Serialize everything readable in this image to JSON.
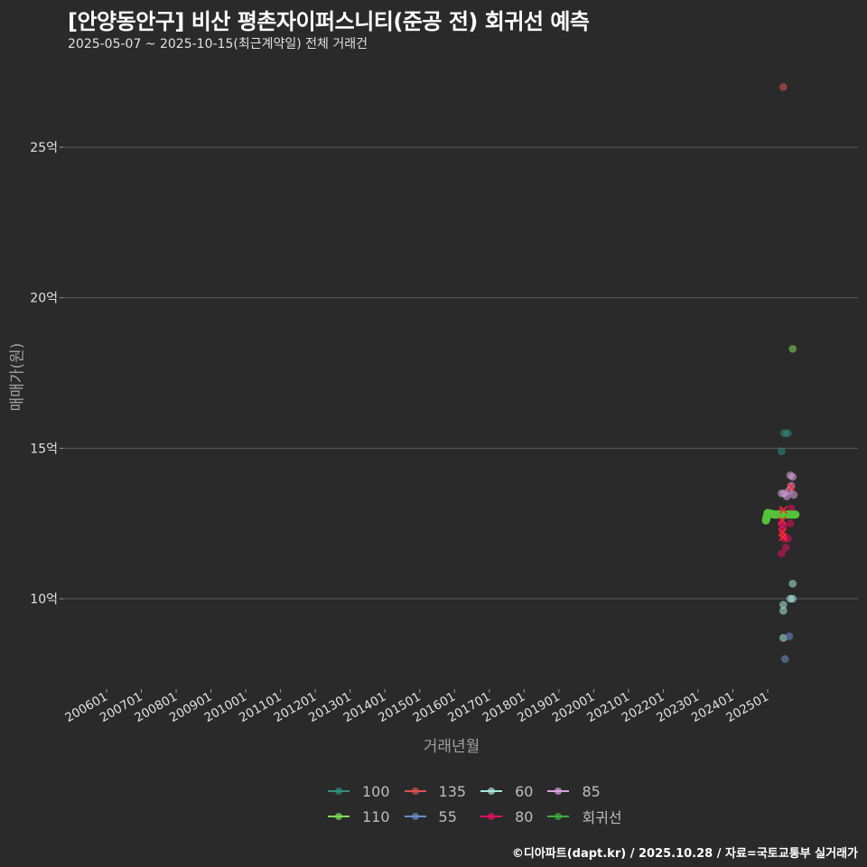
{
  "header": {
    "title": "[안양동안구] 비산 평촌자이퍼스니티(준공 전) 회귀선 예측",
    "subtitle": "2025-05-07 ~ 2025-10-15(최근계약일) 전체 거래건"
  },
  "axes": {
    "ylabel": "매매가(원)",
    "xlabel": "거래년월"
  },
  "legend": {
    "items": [
      {
        "label": "100",
        "color": "#2f8f84"
      },
      {
        "label": "135",
        "color": "#d9534f"
      },
      {
        "label": "60",
        "color": "#a8e6e0"
      },
      {
        "label": "85",
        "color": "#d9a3e0"
      },
      {
        "label": "110",
        "color": "#7ed957"
      },
      {
        "label": "55",
        "color": "#6a8cc7"
      },
      {
        "label": "80",
        "color": "#e0115f"
      },
      {
        "label": "회귀선",
        "color": "#3fae3f"
      }
    ]
  },
  "footer": {
    "credit": "©디아파트(dapt.kr) / 2025.10.28 / 자료=국토교통부 실거래가"
  },
  "chart_data": {
    "type": "scatter",
    "title": "[안양동안구] 비산 평촌자이퍼스니티(준공 전) 회귀선 예측",
    "subtitle": "2025-05-07 ~ 2025-10-15(최근계약일) 전체 거래건",
    "xlabel": "거래년월",
    "ylabel": "매매가(원)",
    "x_ticks": [
      "200601",
      "200701",
      "200801",
      "200901",
      "201001",
      "201101",
      "201201",
      "201301",
      "201401",
      "201501",
      "201601",
      "201701",
      "201801",
      "201901",
      "202001",
      "202101",
      "202201",
      "202301",
      "202401",
      "202501"
    ],
    "y_ticks": [
      "10억",
      "15억",
      "20억",
      "25억"
    ],
    "ylim_eok": [
      7.2,
      28.0
    ],
    "xlim_year": [
      2005.25,
      2028.1
    ],
    "grid": "horizontal major lines",
    "legend_position": "bottom",
    "series": [
      {
        "name": "100",
        "color": "#2f8f84",
        "points": [
          [
            2025.4,
            14.9
          ],
          [
            2025.48,
            15.5
          ],
          [
            2025.58,
            15.5
          ]
        ]
      },
      {
        "name": "135",
        "color": "#d9534f",
        "points": [
          [
            2025.45,
            27.0
          ]
        ]
      },
      {
        "name": "60",
        "color": "#a8e6e0",
        "points": [
          [
            2025.45,
            9.8
          ],
          [
            2025.45,
            9.6
          ],
          [
            2025.65,
            10.0
          ],
          [
            2025.72,
            10.0
          ],
          [
            2025.72,
            10.5
          ],
          [
            2025.45,
            8.7
          ]
        ]
      },
      {
        "name": "85",
        "color": "#d9a3e0",
        "points": [
          [
            2025.4,
            13.5
          ],
          [
            2025.48,
            13.5
          ],
          [
            2025.55,
            13.4
          ],
          [
            2025.65,
            14.1
          ],
          [
            2025.72,
            14.05
          ],
          [
            2025.68,
            13.75
          ],
          [
            2025.62,
            13.6
          ],
          [
            2025.75,
            13.45
          ]
        ]
      },
      {
        "name": "110",
        "color": "#7ed957",
        "points": [
          [
            2025.72,
            18.3
          ]
        ]
      },
      {
        "name": "55",
        "color": "#6a8cc7",
        "points": [
          [
            2025.62,
            8.75
          ],
          [
            2025.5,
            8.0
          ]
        ]
      },
      {
        "name": "80",
        "color": "#e0115f",
        "points": [
          [
            2025.4,
            12.9
          ],
          [
            2025.4,
            12.5
          ],
          [
            2025.42,
            12.3
          ],
          [
            2025.45,
            12.1
          ],
          [
            2025.48,
            12.0
          ],
          [
            2025.4,
            11.5
          ],
          [
            2025.52,
            11.7
          ],
          [
            2025.58,
            12.0
          ],
          [
            2025.65,
            12.5
          ],
          [
            2025.68,
            13.0
          ],
          [
            2025.45,
            12.4
          ]
        ]
      },
      {
        "name": "회귀선",
        "color": "#3fae3f",
        "points": [
          [
            2024.95,
            12.6
          ],
          [
            2025.0,
            12.85
          ],
          [
            2025.2,
            12.8
          ],
          [
            2025.5,
            12.8
          ],
          [
            2025.8,
            12.8
          ]
        ]
      }
    ],
    "cancelled_marks_x": [
      [
        2025.42,
        12.6
      ],
      [
        2025.42,
        12.2
      ],
      [
        2025.44,
        12.05
      ],
      [
        2025.67,
        13.7
      ],
      [
        2025.45,
        12.95
      ]
    ]
  }
}
